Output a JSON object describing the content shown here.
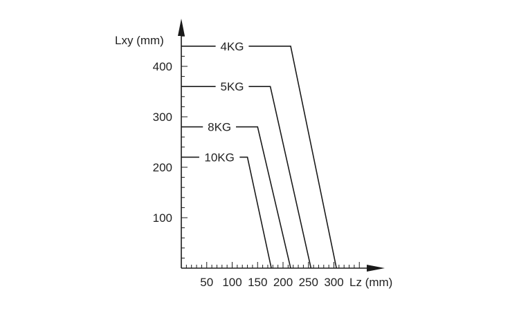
{
  "chart_data": {
    "type": "line",
    "title": "",
    "xlabel": "Lz (mm)",
    "ylabel": "Lxy (mm)",
    "xlim": [
      0,
      350
    ],
    "ylim": [
      0,
      460
    ],
    "xticks": [
      50,
      100,
      150,
      200,
      250,
      300
    ],
    "yticks": [
      100,
      200,
      300,
      400
    ],
    "grid": false,
    "series": [
      {
        "name": "4KG",
        "label_x": 100,
        "points": [
          [
            0,
            440
          ],
          [
            215,
            440
          ],
          [
            305,
            0
          ]
        ]
      },
      {
        "name": "5KG",
        "label_x": 100,
        "points": [
          [
            0,
            360
          ],
          [
            175,
            360
          ],
          [
            255,
            0
          ]
        ]
      },
      {
        "name": "8KG",
        "label_x": 75,
        "points": [
          [
            0,
            280
          ],
          [
            150,
            280
          ],
          [
            215,
            0
          ]
        ]
      },
      {
        "name": "10KG",
        "label_x": 75,
        "points": [
          [
            0,
            220
          ],
          [
            130,
            220
          ],
          [
            177,
            0
          ]
        ]
      }
    ],
    "line_color": "#1a1a1a"
  }
}
